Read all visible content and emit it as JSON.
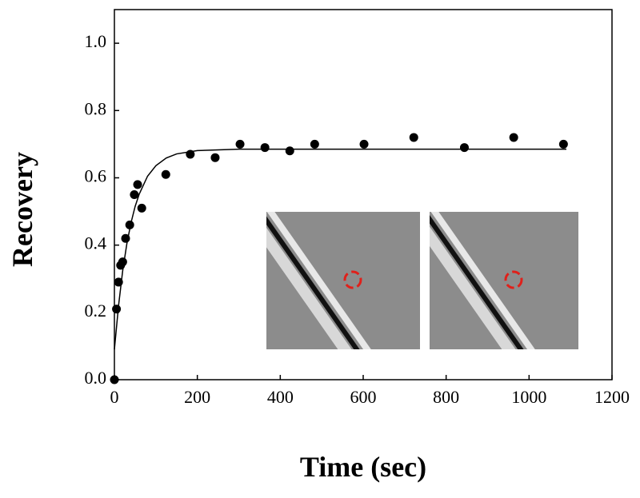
{
  "chart_data": {
    "type": "scatter",
    "x_label": "Time (sec)",
    "y_label": "Recovery",
    "x": [
      0,
      5,
      10,
      15,
      20,
      27,
      37,
      48,
      56,
      66,
      124,
      183,
      243,
      303,
      363,
      423,
      483,
      602,
      722,
      844,
      963,
      1083
    ],
    "values": [
      0,
      0.21,
      0.29,
      0.34,
      0.35,
      0.42,
      0.46,
      0.55,
      0.58,
      0.51,
      0.61,
      0.67,
      0.66,
      0.7,
      0.69,
      0.68,
      0.7,
      0.7,
      0.72,
      0.69,
      0.72,
      0.7
    ],
    "color": "#000000",
    "fit": {
      "type": "line",
      "color": "#000000",
      "x": [
        0,
        10,
        20,
        30,
        40,
        50,
        60,
        80,
        100,
        125,
        150,
        200,
        300,
        500,
        1090
      ],
      "values": [
        0.09,
        0.22,
        0.324,
        0.404,
        0.466,
        0.515,
        0.552,
        0.605,
        0.636,
        0.659,
        0.671,
        0.681,
        0.685,
        0.685,
        0.685
      ]
    },
    "xlim": [
      0,
      1200
    ],
    "ylim": [
      0,
      1.1
    ],
    "xticks": [
      0,
      200,
      400,
      600,
      800,
      1000,
      1200
    ],
    "yticks": [
      {
        "value": 0,
        "label": "0.0"
      },
      {
        "value": 0.2,
        "label": "0.2"
      },
      {
        "value": 0.4,
        "label": "0.4"
      },
      {
        "value": 0.6,
        "label": "0.6"
      },
      {
        "value": 0.8,
        "label": "0.8"
      },
      {
        "value": 1.0,
        "label": "1.0"
      }
    ]
  }
}
